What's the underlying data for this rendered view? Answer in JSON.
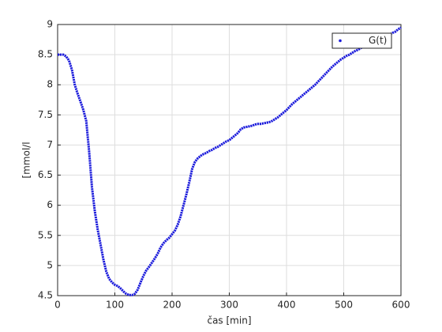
{
  "chart_data": {
    "type": "line",
    "xlabel": "čas [min]",
    "ylabel": "[mmol/l",
    "x": [
      0,
      5,
      10,
      15,
      20,
      25,
      30,
      35,
      40,
      45,
      50,
      55,
      60,
      65,
      70,
      75,
      80,
      85,
      90,
      95,
      100,
      105,
      110,
      115,
      120,
      125,
      130,
      135,
      140,
      145,
      150,
      155,
      160,
      165,
      170,
      175,
      180,
      185,
      190,
      195,
      200,
      205,
      210,
      215,
      220,
      225,
      230,
      235,
      240,
      245,
      250,
      255,
      260,
      265,
      270,
      275,
      280,
      285,
      290,
      295,
      300,
      305,
      310,
      315,
      320,
      325,
      330,
      335,
      340,
      345,
      350,
      355,
      360,
      365,
      370,
      375,
      380,
      385,
      390,
      395,
      400,
      405,
      410,
      415,
      420,
      425,
      430,
      435,
      440,
      445,
      450,
      455,
      460,
      465,
      470,
      475,
      480,
      485,
      490,
      495,
      500,
      505,
      510,
      515,
      520,
      525,
      530,
      535,
      540,
      545,
      550,
      555,
      560,
      565,
      570,
      575,
      580,
      585,
      590,
      595,
      600
    ],
    "series": [
      {
        "name": "G(t)",
        "color": "#1a1adb",
        "values": [
          8.5,
          8.5,
          8.5,
          8.47,
          8.4,
          8.25,
          8.0,
          7.85,
          7.72,
          7.58,
          7.4,
          6.9,
          6.3,
          5.9,
          5.6,
          5.35,
          5.1,
          4.9,
          4.78,
          4.72,
          4.68,
          4.66,
          4.62,
          4.57,
          4.53,
          4.51,
          4.51,
          4.53,
          4.6,
          4.72,
          4.83,
          4.92,
          4.98,
          5.05,
          5.12,
          5.2,
          5.3,
          5.37,
          5.42,
          5.46,
          5.52,
          5.58,
          5.68,
          5.82,
          6.0,
          6.18,
          6.38,
          6.6,
          6.72,
          6.78,
          6.82,
          6.85,
          6.87,
          6.9,
          6.92,
          6.95,
          6.97,
          7.0,
          7.03,
          7.06,
          7.08,
          7.12,
          7.16,
          7.2,
          7.26,
          7.29,
          7.3,
          7.31,
          7.32,
          7.34,
          7.35,
          7.35,
          7.36,
          7.37,
          7.38,
          7.4,
          7.43,
          7.46,
          7.5,
          7.54,
          7.58,
          7.63,
          7.68,
          7.72,
          7.76,
          7.8,
          7.84,
          7.88,
          7.92,
          7.96,
          8.0,
          8.05,
          8.1,
          8.15,
          8.2,
          8.25,
          8.3,
          8.34,
          8.38,
          8.42,
          8.45,
          8.48,
          8.5,
          8.53,
          8.56,
          8.58,
          8.61,
          8.63,
          8.65,
          8.67,
          8.7,
          8.72,
          8.74,
          8.76,
          8.78,
          8.8,
          8.83,
          8.86,
          8.88,
          8.92,
          8.95
        ]
      }
    ],
    "xlim": [
      0,
      600
    ],
    "xticks": [
      0,
      100,
      200,
      300,
      400,
      500,
      600
    ],
    "ylim": [
      4.5,
      9
    ],
    "yticks": [
      4.5,
      5,
      5.5,
      6,
      6.5,
      7,
      7.5,
      8,
      8.5,
      9
    ],
    "grid": true,
    "legend": "northeast"
  }
}
